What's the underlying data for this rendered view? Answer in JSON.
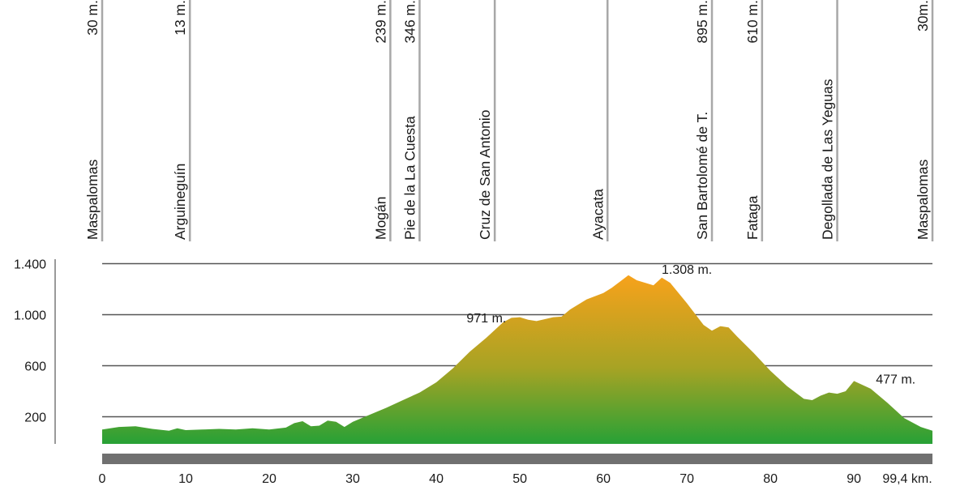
{
  "chart_data": {
    "type": "area",
    "title": "",
    "xlabel": "",
    "ylabel": "",
    "xlim": [
      0,
      99.4
    ],
    "ylim": [
      0,
      1400
    ],
    "x_tick_labels": [
      "0",
      "10",
      "20",
      "30",
      "40",
      "50",
      "60",
      "70",
      "80",
      "90",
      "99,4 km."
    ],
    "x_ticks": [
      0,
      10,
      20,
      30,
      40,
      50,
      60,
      70,
      80,
      90,
      99.4
    ],
    "y_tick_labels": [
      "1.400",
      "1.000",
      "600",
      "200"
    ],
    "y_ticks": [
      1400,
      1000,
      600,
      200
    ],
    "grid": true,
    "colors": {
      "top": "#f7a21b",
      "mid": "#a7a324",
      "bottom": "#27a136",
      "grid": "#555555",
      "bar": "#707070"
    },
    "series": [
      {
        "x": [
          0,
          2,
          4,
          6,
          8,
          9,
          10,
          12,
          14,
          16,
          18,
          20,
          22,
          23,
          24,
          25,
          26,
          27,
          28,
          29,
          30,
          32,
          34,
          36,
          38,
          40,
          42,
          44,
          46,
          48,
          49,
          50,
          51,
          52,
          53,
          54,
          55,
          56,
          58,
          60,
          61,
          62,
          63,
          64,
          65,
          66,
          67,
          68,
          70,
          72,
          73,
          74,
          75,
          76,
          78,
          80,
          82,
          84,
          85,
          86,
          87,
          88,
          89,
          90,
          91,
          92,
          94,
          96,
          98,
          99.4
        ],
        "y": [
          100,
          120,
          125,
          105,
          90,
          110,
          95,
          100,
          105,
          100,
          110,
          100,
          115,
          150,
          165,
          125,
          130,
          170,
          160,
          120,
          160,
          215,
          270,
          330,
          390,
          470,
          580,
          710,
          820,
          940,
          975,
          980,
          960,
          950,
          965,
          980,
          985,
          1040,
          1120,
          1170,
          1210,
          1260,
          1310,
          1270,
          1250,
          1230,
          1290,
          1250,
          1090,
          920,
          875,
          910,
          900,
          830,
          700,
          560,
          440,
          340,
          330,
          365,
          390,
          380,
          400,
          480,
          450,
          420,
          310,
          190,
          120,
          90
        ]
      }
    ],
    "annotations": [
      {
        "text": "971 m.",
        "x": 46,
        "y": 940
      },
      {
        "text": "1.308  m.",
        "x": 70,
        "y": 1320
      },
      {
        "text": "477  m.",
        "x": 95,
        "y": 460
      }
    ],
    "places": [
      {
        "name": "Maspalomas",
        "alt": "30  m.",
        "km": 0
      },
      {
        "name": "Arguineguín",
        "alt": "13 m.",
        "km": 10.5
      },
      {
        "name": "Mogán",
        "alt": "239  m.",
        "km": 34.5
      },
      {
        "name": "Pie de la La Cuesta",
        "alt": "346 m.",
        "km": 38
      },
      {
        "name": "Cruz de San Antonio",
        "alt": "",
        "km": 47
      },
      {
        "name": "Ayacata",
        "alt": "",
        "km": 60.5
      },
      {
        "name": "San Bartolomé de T.",
        "alt": "895  m.",
        "km": 73
      },
      {
        "name": "Fataga",
        "alt": "610 m.",
        "km": 79
      },
      {
        "name": "Degollada de Las Yeguas",
        "alt": "",
        "km": 88
      },
      {
        "name": "Maspalomas",
        "alt": "30m.",
        "km": 99.4
      }
    ]
  }
}
